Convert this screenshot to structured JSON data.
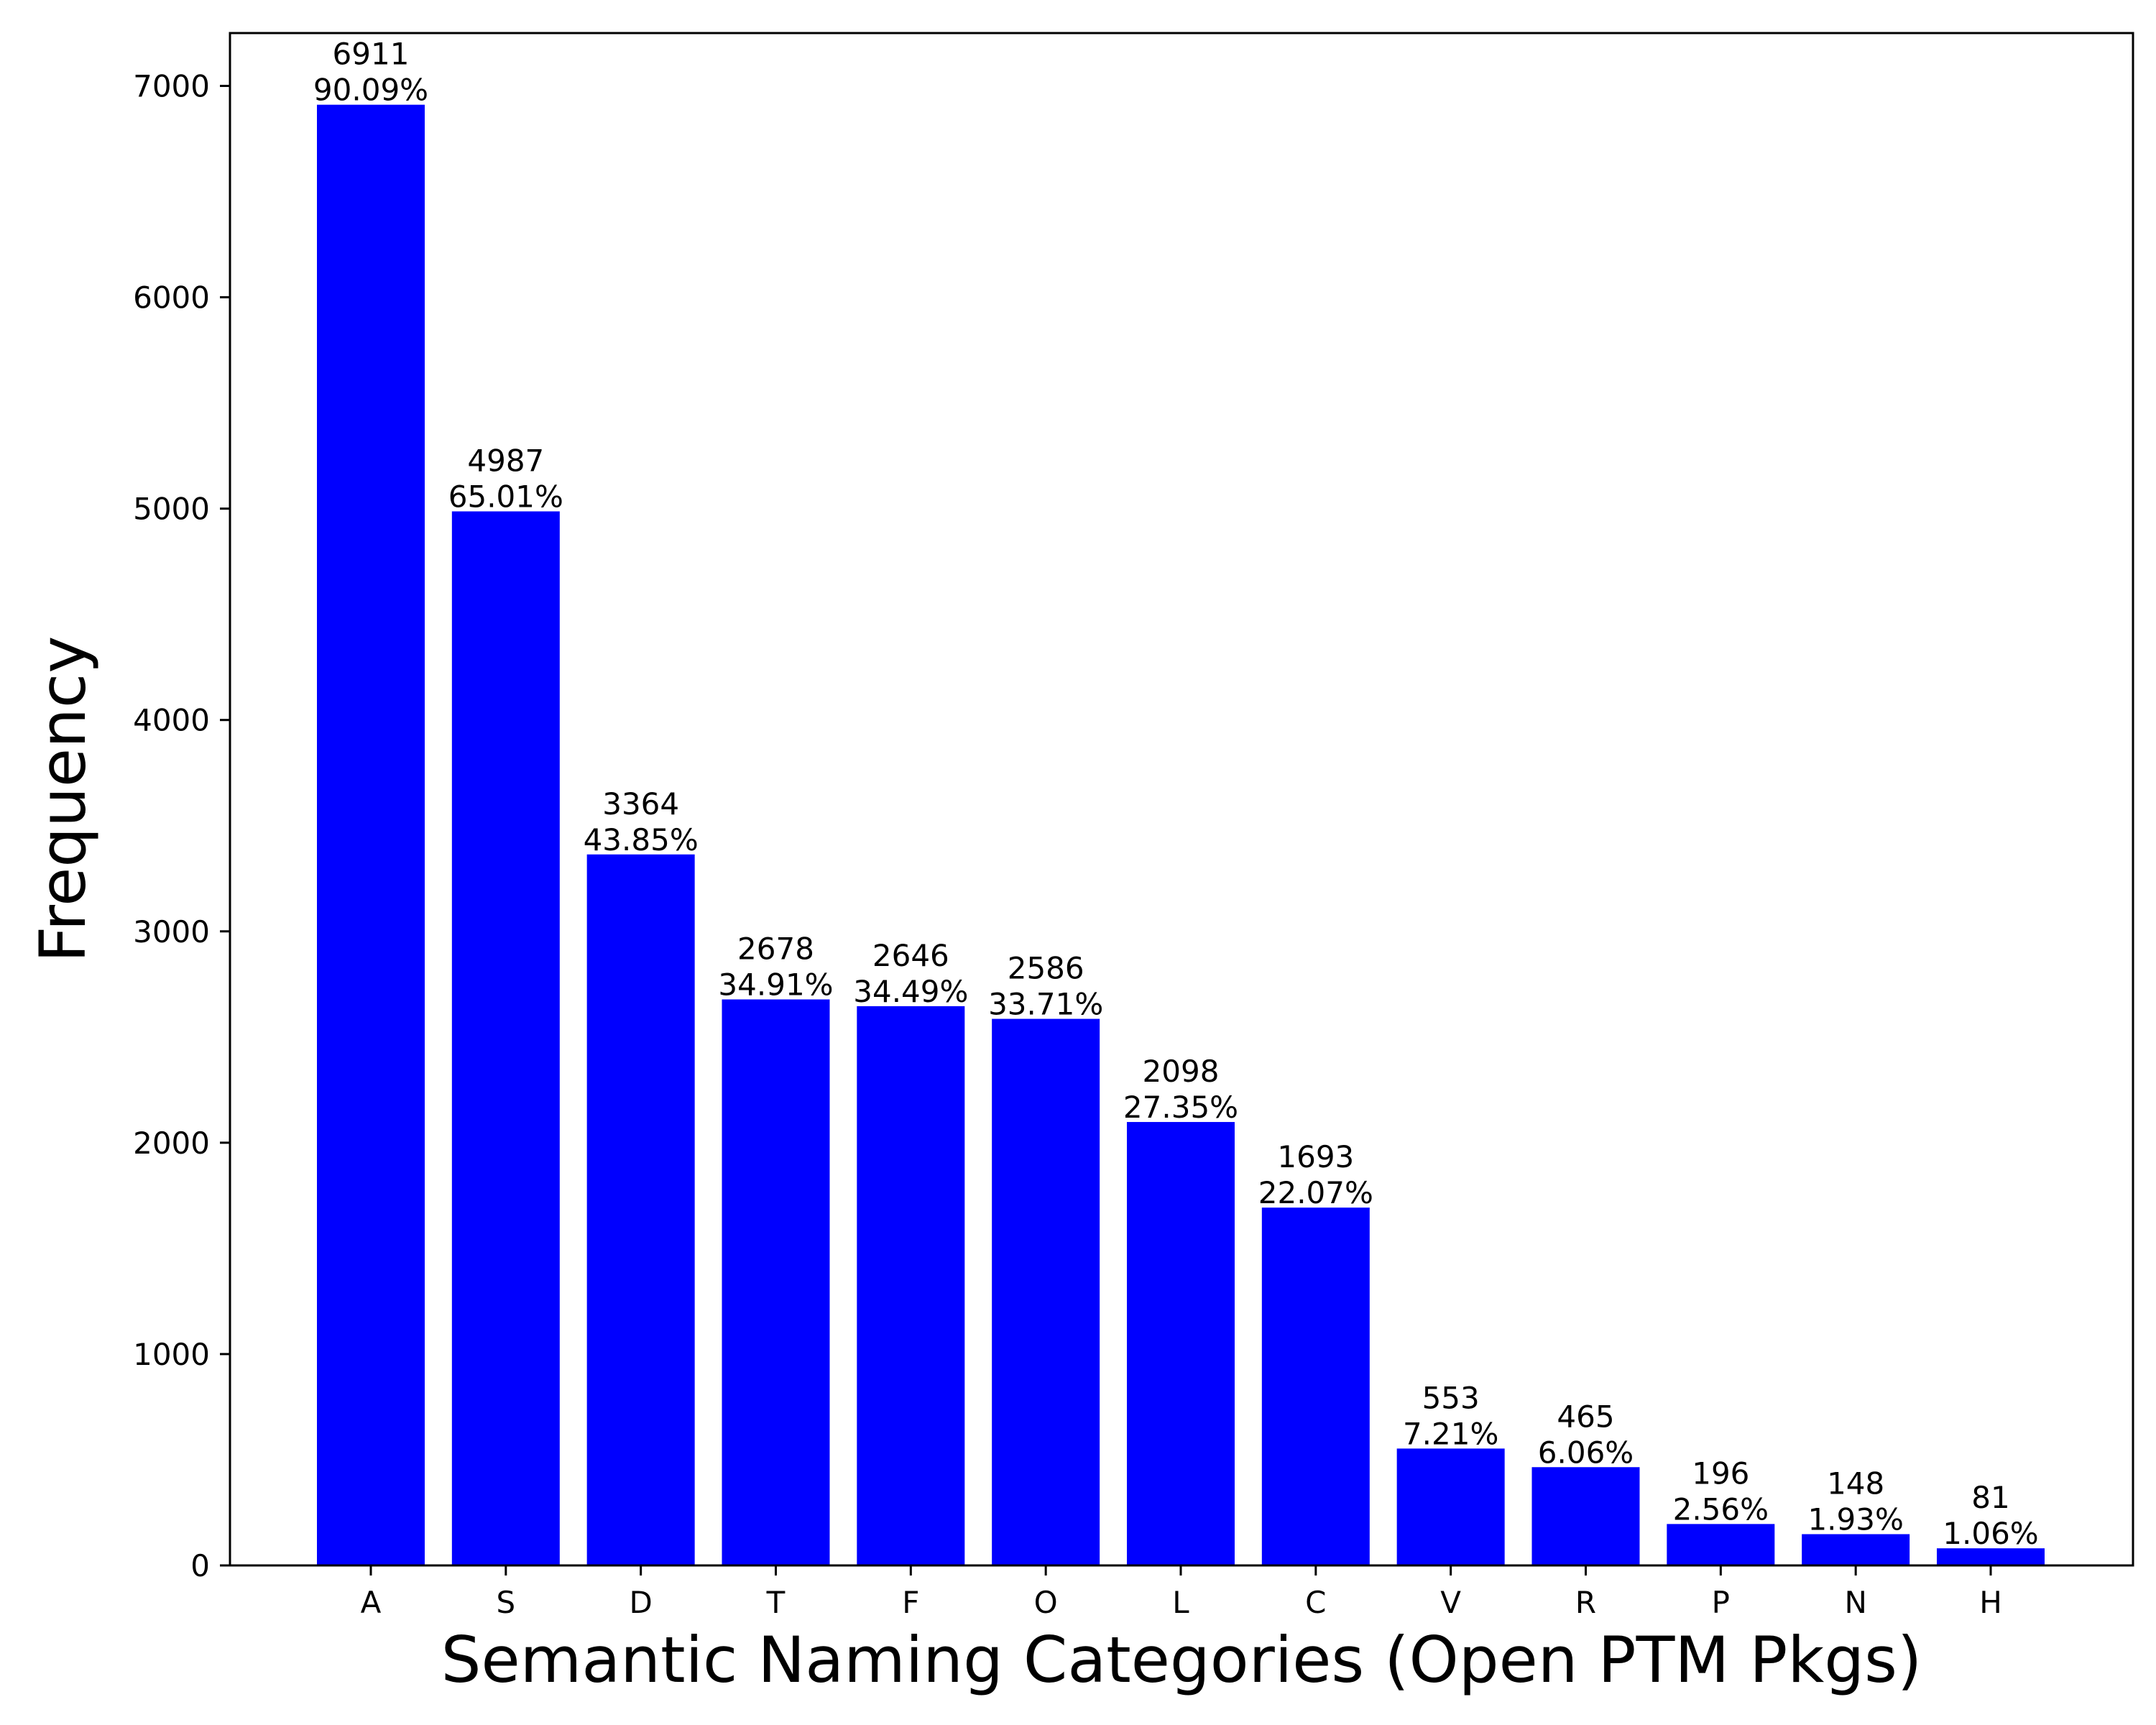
{
  "chart_data": {
    "type": "bar",
    "categories": [
      "A",
      "S",
      "D",
      "T",
      "F",
      "O",
      "L",
      "C",
      "V",
      "R",
      "P",
      "N",
      "H"
    ],
    "values": [
      6911,
      4987,
      3364,
      2678,
      2646,
      2586,
      2098,
      1693,
      553,
      465,
      196,
      148,
      81
    ],
    "percent_labels": [
      "90.09%",
      "65.01%",
      "43.85%",
      "34.91%",
      "34.49%",
      "33.71%",
      "27.35%",
      "22.07%",
      "7.21%",
      "6.06%",
      "2.56%",
      "1.93%",
      "1.06%"
    ],
    "xlabel": "Semantic Naming Categories (Open PTM Pkgs)",
    "ylabel": "Frequency",
    "ylim": [
      0,
      7250
    ],
    "yticks": [
      0,
      1000,
      2000,
      3000,
      4000,
      5000,
      6000,
      7000
    ],
    "grid": false,
    "colors": {
      "bar": "#0000ff",
      "axis": "#000000",
      "background": "#ffffff"
    }
  }
}
